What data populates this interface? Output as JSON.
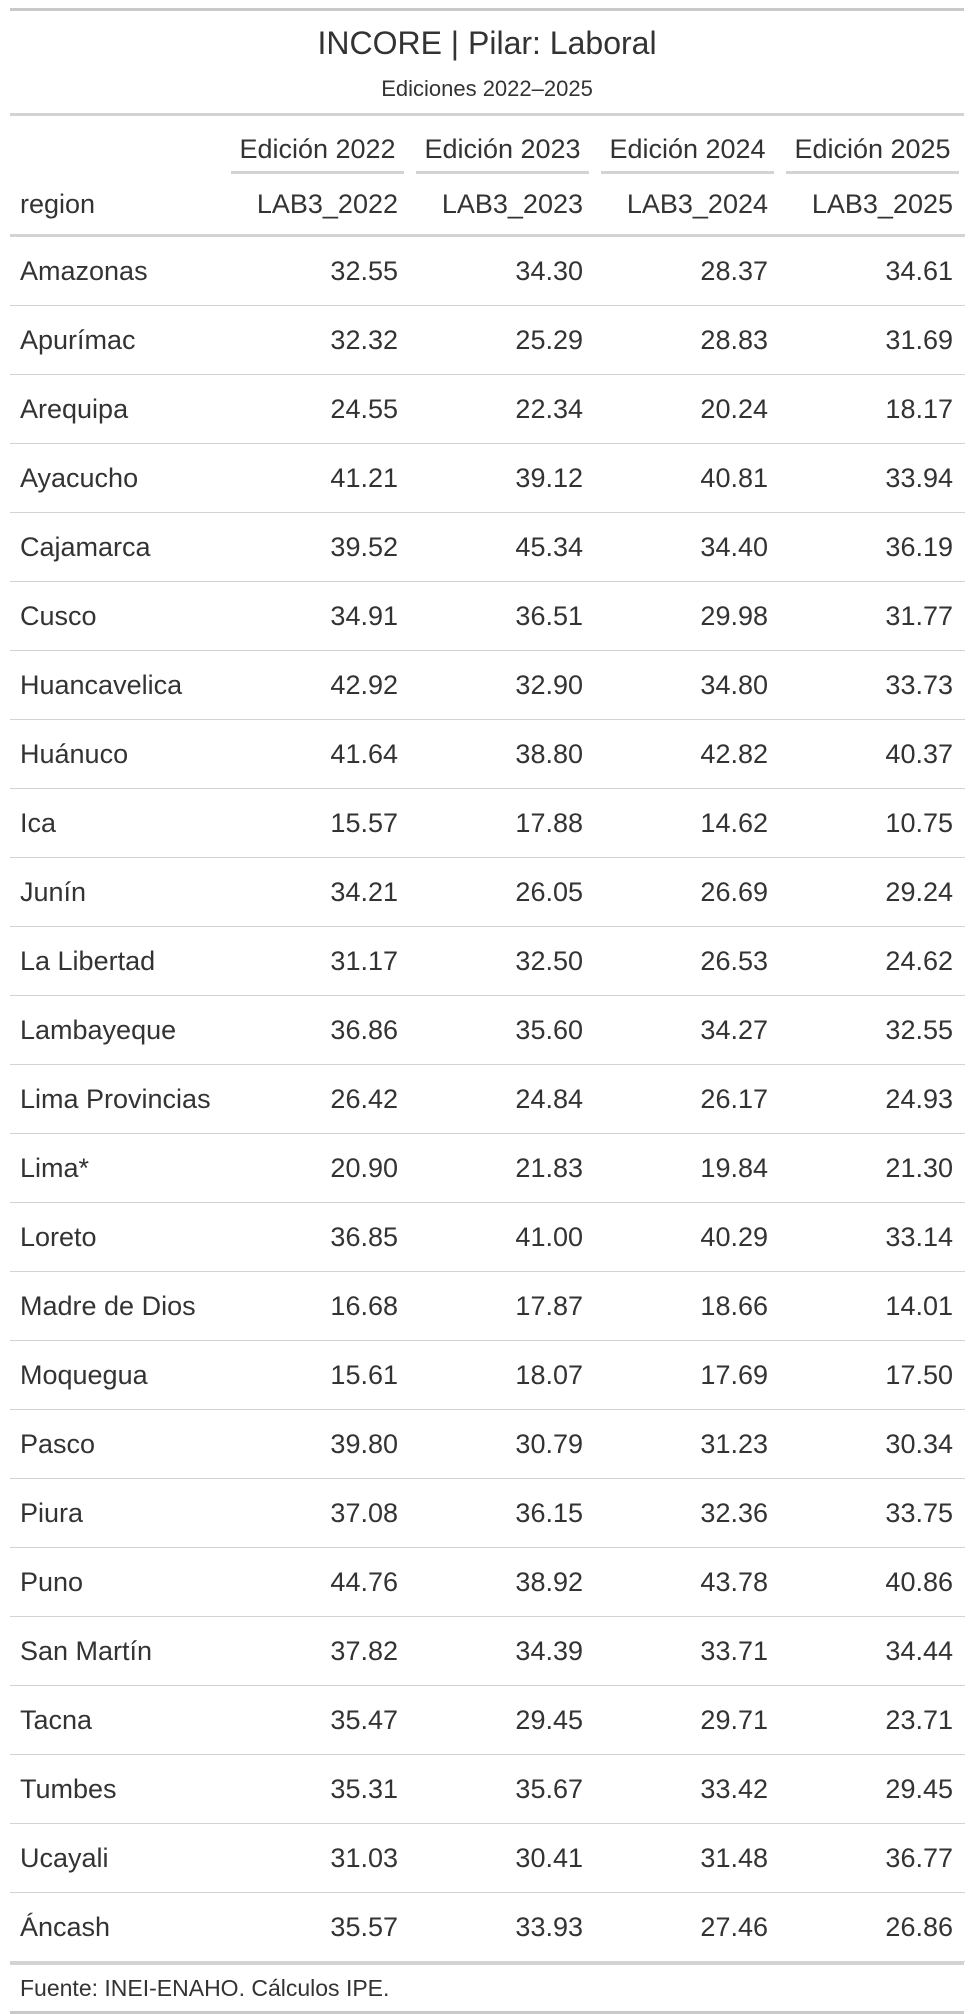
{
  "title": "INCORE | Pilar: Laboral",
  "subtitle": "Ediciones 2022–2025",
  "spanners": [
    "Edición 2022",
    "Edición 2023",
    "Edición 2024",
    "Edición 2025"
  ],
  "columns": [
    "region",
    "LAB3_2022",
    "LAB3_2023",
    "LAB3_2024",
    "LAB3_2025"
  ],
  "rows": [
    [
      "Amazonas",
      "32.55",
      "34.30",
      "28.37",
      "34.61"
    ],
    [
      "Apurímac",
      "32.32",
      "25.29",
      "28.83",
      "31.69"
    ],
    [
      "Arequipa",
      "24.55",
      "22.34",
      "20.24",
      "18.17"
    ],
    [
      "Ayacucho",
      "41.21",
      "39.12",
      "40.81",
      "33.94"
    ],
    [
      "Cajamarca",
      "39.52",
      "45.34",
      "34.40",
      "36.19"
    ],
    [
      "Cusco",
      "34.91",
      "36.51",
      "29.98",
      "31.77"
    ],
    [
      "Huancavelica",
      "42.92",
      "32.90",
      "34.80",
      "33.73"
    ],
    [
      "Huánuco",
      "41.64",
      "38.80",
      "42.82",
      "40.37"
    ],
    [
      "Ica",
      "15.57",
      "17.88",
      "14.62",
      "10.75"
    ],
    [
      "Junín",
      "34.21",
      "26.05",
      "26.69",
      "29.24"
    ],
    [
      "La Libertad",
      "31.17",
      "32.50",
      "26.53",
      "24.62"
    ],
    [
      "Lambayeque",
      "36.86",
      "35.60",
      "34.27",
      "32.55"
    ],
    [
      "Lima Provincias",
      "26.42",
      "24.84",
      "26.17",
      "24.93"
    ],
    [
      "Lima*",
      "20.90",
      "21.83",
      "19.84",
      "21.30"
    ],
    [
      "Loreto",
      "36.85",
      "41.00",
      "40.29",
      "33.14"
    ],
    [
      "Madre de Dios",
      "16.68",
      "17.87",
      "18.66",
      "14.01"
    ],
    [
      "Moquegua",
      "15.61",
      "18.07",
      "17.69",
      "17.50"
    ],
    [
      "Pasco",
      "39.80",
      "30.79",
      "31.23",
      "30.34"
    ],
    [
      "Piura",
      "37.08",
      "36.15",
      "32.36",
      "33.75"
    ],
    [
      "Puno",
      "44.76",
      "38.92",
      "43.78",
      "40.86"
    ],
    [
      "San Martín",
      "37.82",
      "34.39",
      "33.71",
      "34.44"
    ],
    [
      "Tacna",
      "35.47",
      "29.45",
      "29.71",
      "23.71"
    ],
    [
      "Tumbes",
      "35.31",
      "35.67",
      "33.42",
      "29.45"
    ],
    [
      "Ucayali",
      "31.03",
      "30.41",
      "31.48",
      "36.77"
    ],
    [
      "Áncash",
      "35.57",
      "33.93",
      "27.46",
      "26.86"
    ]
  ],
  "source": "Fuente: INEI-ENAHO. Cálculos IPE."
}
